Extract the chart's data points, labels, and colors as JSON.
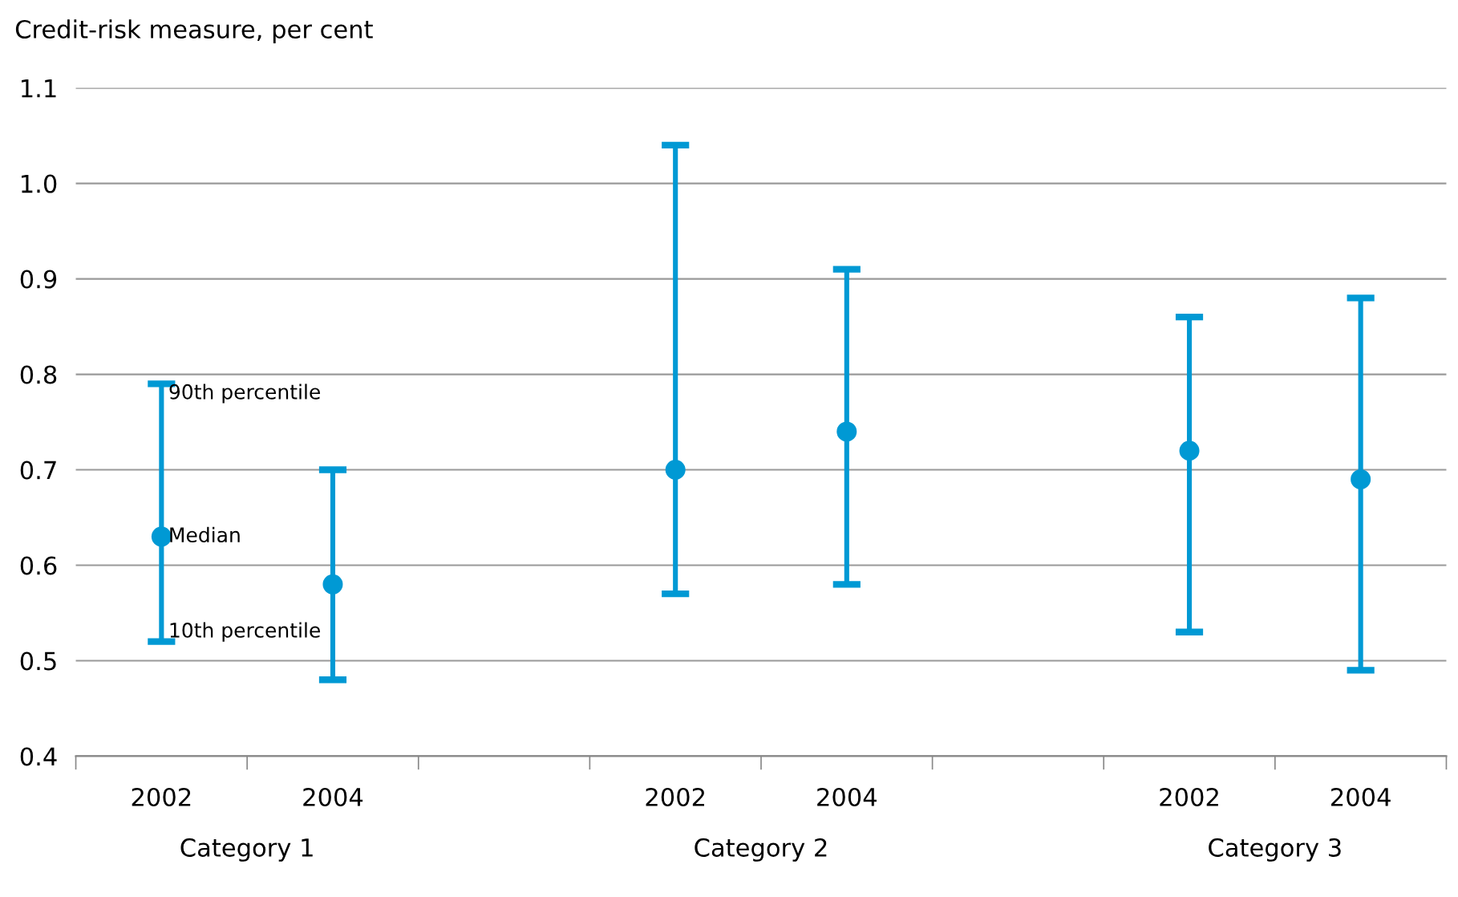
{
  "chart_data": {
    "type": "scatter",
    "ylabel": "Credit-risk measure, per cent",
    "categories": [
      "2002",
      "2004",
      null,
      "2002",
      "2004",
      null,
      "2002",
      "2004"
    ],
    "series": [
      {
        "color": "#0099d4",
        "values": [
          0.63,
          0.58,
          null,
          0.7,
          0.74,
          null,
          0.72,
          0.69
        ],
        "errors": [
          [
            0.52,
            0.79
          ],
          [
            0.48,
            0.7
          ],
          null,
          [
            0.57,
            1.04
          ],
          [
            0.58,
            0.91
          ],
          null,
          [
            0.53,
            0.86
          ],
          [
            0.49,
            0.88
          ]
        ]
      }
    ],
    "ylim": [
      0.4,
      1.1
    ],
    "yticks": [
      0.4,
      0.5,
      0.6,
      0.7,
      0.8,
      0.9,
      {
        "value": 1.0,
        "label": "1.0"
      },
      1.1
    ],
    "grid": "y",
    "marker": "circle",
    "annotations": [
      "Category 1",
      "Category 2",
      "Category 3",
      {
        "text": "90th percentile",
        "x": "2002",
        "y": 0.79
      },
      {
        "text": "Median",
        "x": "2002",
        "y": 0.63
      },
      {
        "text": "10th percentile",
        "x": "2002",
        "y": 0.52
      }
    ]
  }
}
